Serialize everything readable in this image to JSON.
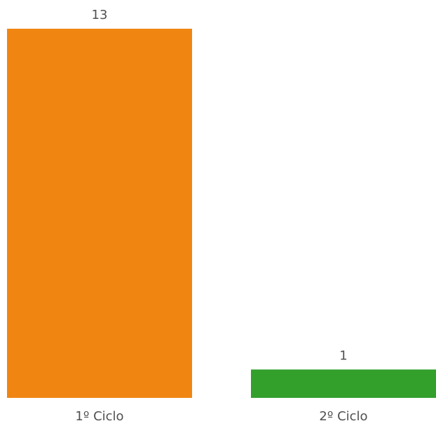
{
  "chart_data": {
    "type": "bar",
    "categories": [
      "1º Ciclo",
      "2º Ciclo"
    ],
    "values": [
      13,
      1
    ],
    "colors": [
      "#F08512",
      "#33A02C"
    ],
    "title": "",
    "xlabel": "",
    "ylabel": "",
    "ylim": [
      0,
      13
    ],
    "grid": false,
    "legend": "none",
    "data_labels": true
  }
}
